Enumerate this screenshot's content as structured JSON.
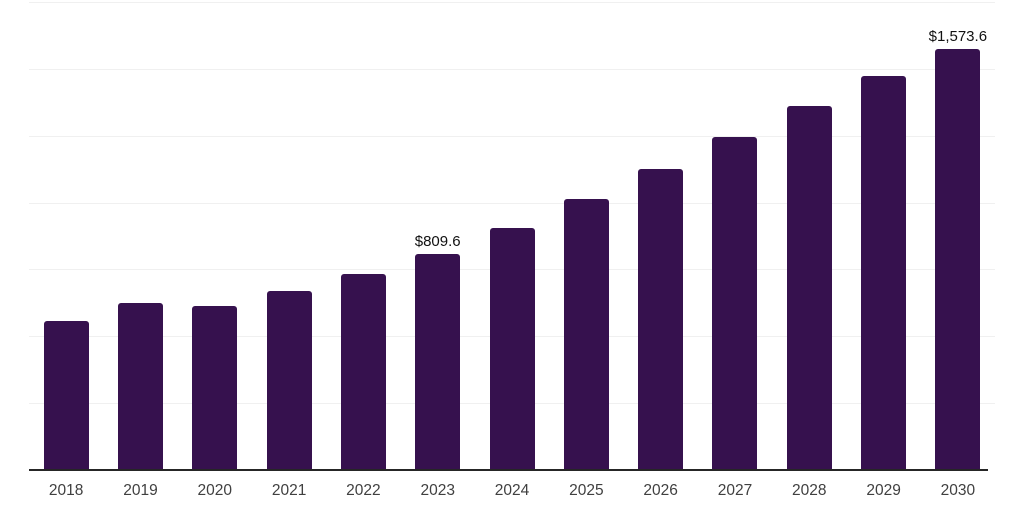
{
  "chart_data": {
    "type": "bar",
    "title": "",
    "xlabel": "",
    "ylabel": "",
    "categories": [
      "2018",
      "2019",
      "2020",
      "2021",
      "2022",
      "2023",
      "2024",
      "2025",
      "2026",
      "2027",
      "2028",
      "2029",
      "2030"
    ],
    "values": [
      559,
      623,
      613,
      669,
      732,
      809.6,
      906,
      1012,
      1124,
      1244,
      1361,
      1473,
      1573.6
    ],
    "point_labels": [
      "",
      "",
      "",
      "",
      "",
      "$809.6",
      "",
      "",
      "",
      "",
      "",
      "",
      "$1,573.6"
    ],
    "ylim": [
      0,
      1750
    ],
    "gridline_step": 250,
    "grid": "horizontal-only",
    "y_tick_labels_visible": false,
    "legend_position": "none"
  },
  "style": {
    "bar_color": "#36114E",
    "gridline_color": "#f0f0f0",
    "axis_line_color": "#262626",
    "tick_label_color": "#404040",
    "value_label_color": "#111111",
    "background_color": "#ffffff"
  }
}
